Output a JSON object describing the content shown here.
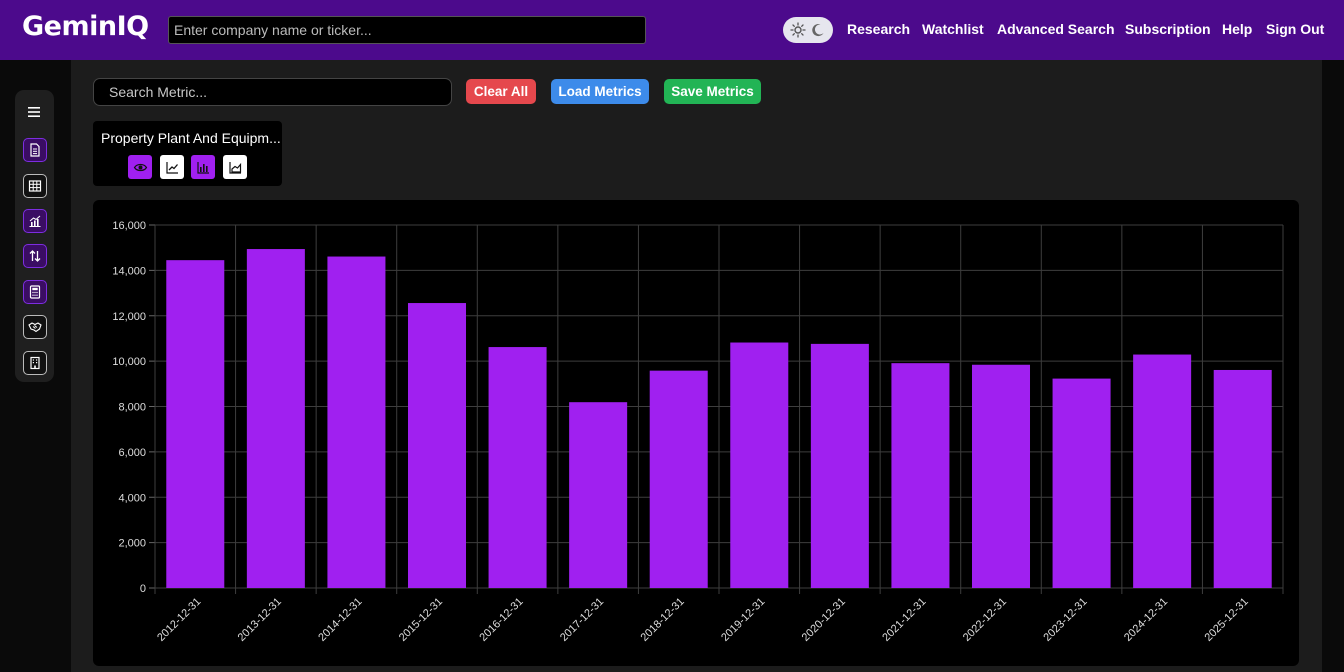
{
  "header": {
    "logo": "GeminIQ",
    "search_placeholder": "Enter company name or ticker...",
    "nav": [
      "Research",
      "Watchlist",
      "Advanced Search",
      "Subscription",
      "Help",
      "Sign Out"
    ]
  },
  "sidebar": {
    "icons": [
      "menu-icon",
      "document-icon",
      "table-icon",
      "line-chart-icon",
      "transfer-icon",
      "calculator-icon",
      "handshake-icon",
      "building-icon"
    ]
  },
  "toolbar": {
    "metric_search_placeholder": "Search Metric...",
    "clear_label": "Clear All",
    "load_label": "Load Metrics",
    "save_label": "Save Metrics"
  },
  "metric_card": {
    "title": "Property Plant And Equipm...",
    "buttons": [
      "eye-icon",
      "line-chart-icon",
      "bar-chart-icon",
      "area-chart-icon"
    ]
  },
  "colors": {
    "header_bg": "#4c0a8c",
    "bar": "#a020f0",
    "clear": "#e5484d",
    "load": "#3d8bea",
    "save": "#22b455"
  },
  "chart_data": {
    "type": "bar",
    "categories": [
      "2012-12-31",
      "2013-12-31",
      "2014-12-31",
      "2015-12-31",
      "2016-12-31",
      "2017-12-31",
      "2018-12-31",
      "2019-12-31",
      "2020-12-31",
      "2021-12-31",
      "2022-12-31",
      "2023-12-31",
      "2024-12-31",
      "2025-12-31"
    ],
    "values": [
      14450,
      14940,
      14610,
      12560,
      10620,
      8190,
      9580,
      10820,
      10760,
      9910,
      9840,
      9230,
      10290,
      9610
    ],
    "ylim": [
      0,
      16000
    ],
    "yticks": [
      0,
      2000,
      4000,
      6000,
      8000,
      10000,
      12000,
      14000,
      16000
    ],
    "grid": true,
    "title": "",
    "xlabel": "",
    "ylabel": ""
  }
}
